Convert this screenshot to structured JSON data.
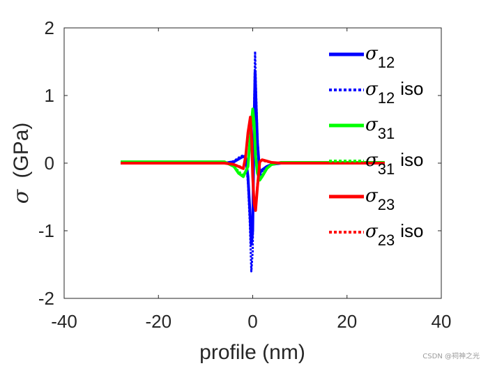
{
  "chart_data": {
    "type": "line",
    "xlabel": "profile (nm)",
    "ylabel_symbol": "σ",
    "ylabel_unit": "(GPa)",
    "xlim": [
      -40,
      40
    ],
    "ylim": [
      -2,
      2
    ],
    "xticks": [
      -40,
      -20,
      0,
      20,
      40
    ],
    "yticks": [
      -2,
      -1,
      0,
      1,
      2
    ],
    "grid": false,
    "legend_position": "top-right",
    "series": [
      {
        "name": "σ12",
        "label_base": "σ",
        "label_sub": "12",
        "label_suffix": "",
        "color": "#0000ff",
        "dash": "solid",
        "x": [
          -28,
          -6,
          -4,
          -3,
          -2,
          -1.5,
          -1,
          -0.6,
          -0.3,
          0,
          0.3,
          0.5,
          0.7,
          1,
          1.5,
          2,
          3,
          4,
          6,
          28
        ],
        "y": [
          0,
          0,
          0.02,
          0.06,
          0.1,
          0.08,
          -0.2,
          -0.7,
          -1.2,
          -1.0,
          0.6,
          1.35,
          0.9,
          0.3,
          -0.15,
          -0.1,
          -0.05,
          -0.02,
          0,
          0
        ]
      },
      {
        "name": "σ12 iso",
        "label_base": "σ",
        "label_sub": "12",
        "label_suffix": "iso",
        "color": "#0000ff",
        "dash": "dotted",
        "x": [
          -28,
          -6,
          -4,
          -3,
          -2,
          -1.5,
          -1,
          -0.6,
          -0.3,
          0,
          0.3,
          0.5,
          0.7,
          1,
          1.5,
          2,
          3,
          4,
          6,
          28
        ],
        "y": [
          0,
          0,
          0.03,
          0.08,
          0.12,
          0.1,
          -0.3,
          -0.9,
          -1.6,
          -1.3,
          0.8,
          1.65,
          1.1,
          0.4,
          -0.2,
          -0.12,
          -0.06,
          -0.02,
          0,
          0
        ]
      },
      {
        "name": "σ31",
        "label_base": "σ",
        "label_sub": "31",
        "label_suffix": "",
        "color": "#00ff00",
        "dash": "solid",
        "x": [
          -28,
          -6,
          -4,
          -3,
          -2,
          -1,
          -0.5,
          0,
          0.3,
          0.6,
          1,
          1.5,
          2,
          3,
          4,
          6,
          28
        ],
        "y": [
          0.02,
          0.02,
          -0.05,
          -0.15,
          -0.2,
          -0.05,
          0.4,
          0.8,
          0.6,
          0.1,
          -0.15,
          -0.25,
          -0.2,
          -0.08,
          -0.02,
          0.01,
          0.01
        ]
      },
      {
        "name": "σ31 iso",
        "label_base": "σ",
        "label_sub": "31",
        "label_suffix": "iso",
        "color": "#00ff00",
        "dash": "dotted",
        "x": [
          -28,
          -6,
          -4,
          -3,
          -2,
          -1,
          -0.5,
          0,
          0.3,
          0.6,
          1,
          1.5,
          2,
          3,
          4,
          6,
          28
        ],
        "y": [
          0.02,
          0.02,
          -0.04,
          -0.12,
          -0.18,
          -0.04,
          0.35,
          0.75,
          0.55,
          0.1,
          -0.12,
          -0.22,
          -0.18,
          -0.07,
          -0.02,
          0.01,
          0.01
        ]
      },
      {
        "name": "σ23",
        "label_base": "σ",
        "label_sub": "23",
        "label_suffix": "",
        "color": "#ff0000",
        "dash": "solid",
        "x": [
          -28,
          -6,
          -4,
          -3,
          -2,
          -1.5,
          -1,
          -0.5,
          -0.2,
          0,
          0.3,
          0.6,
          1,
          1.5,
          2,
          3,
          4,
          6,
          28
        ],
        "y": [
          0,
          0,
          -0.02,
          -0.05,
          -0.08,
          0.1,
          0.45,
          0.68,
          0.3,
          -0.2,
          -0.6,
          -0.7,
          -0.35,
          0.02,
          0.05,
          0.03,
          0.01,
          0,
          0
        ]
      },
      {
        "name": "σ23 iso",
        "label_base": "σ",
        "label_sub": "23",
        "label_suffix": "iso",
        "color": "#ff0000",
        "dash": "dotted",
        "x": [
          -28,
          -6,
          -4,
          -3,
          -2,
          -1.5,
          -1,
          -0.5,
          -0.2,
          0,
          0.3,
          0.6,
          1,
          1.5,
          2,
          3,
          4,
          6,
          28
        ],
        "y": [
          0,
          0,
          -0.02,
          -0.04,
          -0.07,
          0.08,
          0.4,
          0.62,
          0.28,
          -0.18,
          -0.55,
          -0.65,
          -0.3,
          0.02,
          0.04,
          0.02,
          0.01,
          0,
          0
        ]
      }
    ]
  },
  "watermark": "CSDN @祠神之光"
}
